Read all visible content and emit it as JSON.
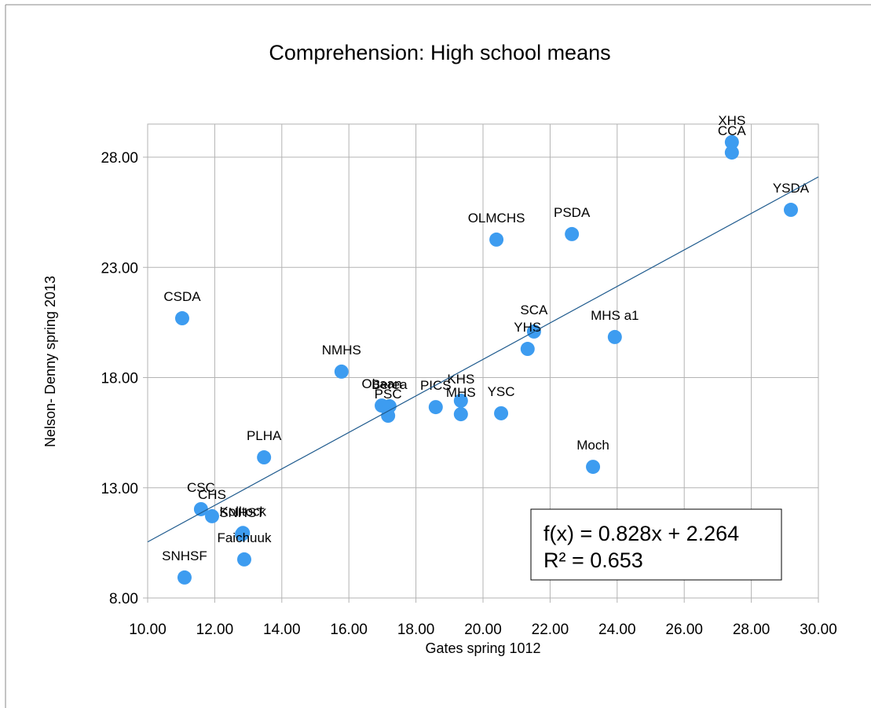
{
  "chart_data": {
    "type": "scatter",
    "title": "Comprehension: High school means",
    "x_label": "Gates spring 1012",
    "y_label": "Nelson- Denny spring 2013",
    "color": "#3d9cf0",
    "grid": true,
    "xlim": [
      10,
      30
    ],
    "ylim": [
      8,
      29.5
    ],
    "xticks": [
      {
        "value": 10,
        "label": "10.00"
      },
      {
        "value": 12,
        "label": "12.00"
      },
      {
        "value": 14,
        "label": "14.00"
      },
      {
        "value": 16,
        "label": "16.00"
      },
      {
        "value": 18,
        "label": "18.00"
      },
      {
        "value": 20,
        "label": "20.00"
      },
      {
        "value": 22,
        "label": "22.00"
      },
      {
        "value": 24,
        "label": "24.00"
      },
      {
        "value": 26,
        "label": "26.00"
      },
      {
        "value": 28,
        "label": "28.00"
      },
      {
        "value": 30,
        "label": "30.00"
      }
    ],
    "yticks": [
      {
        "value": 8,
        "label": "8.00"
      },
      {
        "value": 13,
        "label": "13.00"
      },
      {
        "value": 18,
        "label": "18.00"
      },
      {
        "value": 23,
        "label": "23.00"
      },
      {
        "value": 28,
        "label": "28.00"
      }
    ],
    "points": {
      "labels": [
        "XHS",
        "CCA",
        "YSDA",
        "PSDA",
        "OLMCHS",
        "CSDA",
        "SCA",
        "YHS",
        "MHS a1",
        "NMHS",
        "Obaan",
        "Berea",
        "PSC",
        "PICS",
        "KHS",
        "MHS",
        "YSC",
        "Moch",
        "PLHA",
        "CSC",
        "CHS",
        "SNHST",
        "Kolltock",
        "Faichuuk",
        "SNHSF"
      ],
      "x": [
        27.42,
        27.42,
        29.18,
        22.65,
        20.4,
        11.03,
        21.52,
        21.33,
        23.93,
        15.78,
        16.98,
        17.21,
        17.17,
        18.59,
        19.34,
        19.34,
        20.54,
        23.28,
        13.47,
        11.59,
        11.92,
        12.81,
        12.84,
        12.88,
        11.1
      ],
      "y": [
        28.68,
        28.21,
        25.61,
        24.51,
        24.26,
        20.69,
        20.09,
        19.3,
        19.84,
        18.27,
        16.73,
        16.7,
        16.27,
        16.66,
        16.95,
        16.34,
        16.38,
        13.95,
        14.38,
        12.03,
        11.71,
        10.89,
        10.95,
        9.75,
        8.93
      ]
    },
    "trendline": {
      "slope": 0.828,
      "intercept": 2.264,
      "label": "f(x) = 0.828x + 2.264",
      "r2_label": "R² = 0.653"
    }
  }
}
